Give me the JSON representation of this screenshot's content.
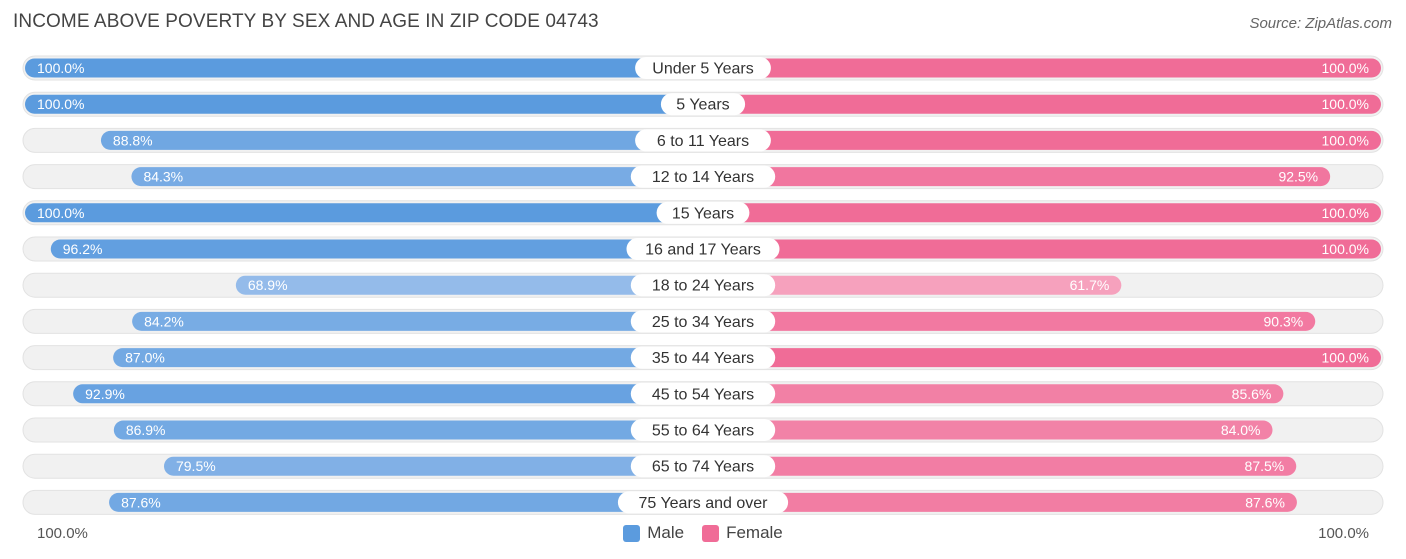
{
  "header": {
    "title": "INCOME ABOVE POVERTY BY SEX AND AGE IN ZIP CODE 04743",
    "source": "Source: ZipAtlas.com"
  },
  "axis": {
    "left_label": "100.0%",
    "right_label": "100.0%"
  },
  "legend": {
    "male": {
      "label": "Male",
      "color": "#5b9bde"
    },
    "female": {
      "label": "Female",
      "color": "#f06c97"
    }
  },
  "chart_data": {
    "type": "bar",
    "orientation": "horizontal-diverging",
    "title": "INCOME ABOVE POVERTY BY SEX AND AGE IN ZIP CODE 04743",
    "categories": [
      "Under 5 Years",
      "5 Years",
      "6 to 11 Years",
      "12 to 14 Years",
      "15 Years",
      "16 and 17 Years",
      "18 to 24 Years",
      "25 to 34 Years",
      "35 to 44 Years",
      "45 to 54 Years",
      "55 to 64 Years",
      "65 to 74 Years",
      "75 Years and over"
    ],
    "series": [
      {
        "name": "Male",
        "color": "#5b9bde",
        "values": [
          100.0,
          100.0,
          88.8,
          84.3,
          100.0,
          96.2,
          68.9,
          84.2,
          87.0,
          92.9,
          86.9,
          79.5,
          87.6
        ],
        "labels": [
          "100.0%",
          "100.0%",
          "88.8%",
          "84.3%",
          "100.0%",
          "96.2%",
          "68.9%",
          "84.2%",
          "87.0%",
          "92.9%",
          "86.9%",
          "79.5%",
          "87.6%"
        ]
      },
      {
        "name": "Female",
        "color": "#f06c97",
        "values": [
          100.0,
          100.0,
          100.0,
          92.5,
          100.0,
          100.0,
          61.7,
          90.3,
          100.0,
          85.6,
          84.0,
          87.5,
          87.6
        ],
        "labels": [
          "100.0%",
          "100.0%",
          "100.0%",
          "92.5%",
          "100.0%",
          "100.0%",
          "61.7%",
          "90.3%",
          "100.0%",
          "85.6%",
          "84.0%",
          "87.5%",
          "87.6%"
        ]
      }
    ],
    "xlim": [
      0,
      100
    ],
    "unit": "%"
  }
}
